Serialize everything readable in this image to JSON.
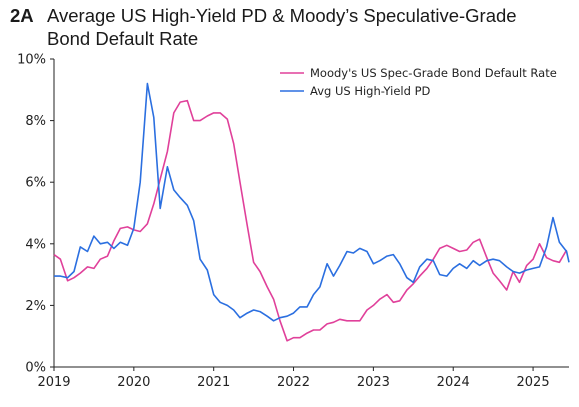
{
  "header": {
    "tag": "2A",
    "title_line1": "Average US High-Yield PD & Moody’s Speculative-Grade",
    "title_line2": "Bond Default Rate"
  },
  "chart_data": {
    "type": "line",
    "title": "Average US High-Yield PD & Moody’s Speculative-Grade Bond Default Rate",
    "xlim": [
      2019.0,
      2025.45
    ],
    "ylim": [
      0,
      10
    ],
    "x_ticks": [
      2019,
      2020,
      2021,
      2022,
      2023,
      2024,
      2025
    ],
    "x_tick_labels": [
      "2019",
      "2020",
      "2021",
      "2022",
      "2023",
      "2024",
      "2025"
    ],
    "y_ticks": [
      0,
      2,
      4,
      6,
      8,
      10
    ],
    "y_tick_labels": [
      "0%",
      "2%",
      "4%",
      "6%",
      "8%",
      "10%"
    ],
    "legend_position": "top-right",
    "grid": false,
    "series": [
      {
        "name": "Moody's US Spec-Grade Bond Default Rate",
        "color": "#e0409a",
        "points": [
          [
            2019.0,
            3.65
          ],
          [
            2019.08,
            3.5
          ],
          [
            2019.17,
            2.8
          ],
          [
            2019.25,
            2.9
          ],
          [
            2019.33,
            3.05
          ],
          [
            2019.42,
            3.25
          ],
          [
            2019.5,
            3.2
          ],
          [
            2019.58,
            3.5
          ],
          [
            2019.67,
            3.6
          ],
          [
            2019.75,
            4.1
          ],
          [
            2019.83,
            4.5
          ],
          [
            2019.92,
            4.55
          ],
          [
            2020.0,
            4.45
          ],
          [
            2020.08,
            4.4
          ],
          [
            2020.17,
            4.65
          ],
          [
            2020.25,
            5.3
          ],
          [
            2020.33,
            6.1
          ],
          [
            2020.42,
            7.0
          ],
          [
            2020.5,
            8.25
          ],
          [
            2020.58,
            8.6
          ],
          [
            2020.67,
            8.65
          ],
          [
            2020.75,
            8.0
          ],
          [
            2020.83,
            8.0
          ],
          [
            2020.92,
            8.15
          ],
          [
            2021.0,
            8.25
          ],
          [
            2021.08,
            8.25
          ],
          [
            2021.17,
            8.05
          ],
          [
            2021.25,
            7.25
          ],
          [
            2021.33,
            6.0
          ],
          [
            2021.42,
            4.6
          ],
          [
            2021.5,
            3.4
          ],
          [
            2021.58,
            3.1
          ],
          [
            2021.67,
            2.6
          ],
          [
            2021.75,
            2.2
          ],
          [
            2021.83,
            1.5
          ],
          [
            2021.92,
            0.85
          ],
          [
            2022.0,
            0.95
          ],
          [
            2022.08,
            0.95
          ],
          [
            2022.17,
            1.1
          ],
          [
            2022.25,
            1.2
          ],
          [
            2022.33,
            1.2
          ],
          [
            2022.42,
            1.4
          ],
          [
            2022.5,
            1.45
          ],
          [
            2022.58,
            1.55
          ],
          [
            2022.67,
            1.5
          ],
          [
            2022.75,
            1.5
          ],
          [
            2022.83,
            1.5
          ],
          [
            2022.92,
            1.85
          ],
          [
            2023.0,
            2.0
          ],
          [
            2023.08,
            2.2
          ],
          [
            2023.17,
            2.35
          ],
          [
            2023.25,
            2.1
          ],
          [
            2023.33,
            2.15
          ],
          [
            2023.42,
            2.5
          ],
          [
            2023.5,
            2.7
          ],
          [
            2023.58,
            2.95
          ],
          [
            2023.67,
            3.2
          ],
          [
            2023.75,
            3.5
          ],
          [
            2023.83,
            3.85
          ],
          [
            2023.92,
            3.95
          ],
          [
            2024.0,
            3.85
          ],
          [
            2024.08,
            3.75
          ],
          [
            2024.17,
            3.8
          ],
          [
            2024.25,
            4.05
          ],
          [
            2024.33,
            4.15
          ],
          [
            2024.42,
            3.55
          ],
          [
            2024.5,
            3.05
          ],
          [
            2024.58,
            2.8
          ],
          [
            2024.67,
            2.5
          ],
          [
            2024.75,
            3.1
          ],
          [
            2024.83,
            2.75
          ],
          [
            2024.92,
            3.3
          ],
          [
            2025.0,
            3.5
          ],
          [
            2025.08,
            4.0
          ],
          [
            2025.17,
            3.55
          ],
          [
            2025.25,
            3.45
          ],
          [
            2025.33,
            3.4
          ],
          [
            2025.42,
            3.8
          ]
        ]
      },
      {
        "name": "Avg US High-Yield PD",
        "color": "#2b6fe0",
        "points": [
          [
            2019.0,
            2.95
          ],
          [
            2019.08,
            2.95
          ],
          [
            2019.17,
            2.9
          ],
          [
            2019.25,
            3.1
          ],
          [
            2019.33,
            3.9
          ],
          [
            2019.42,
            3.75
          ],
          [
            2019.5,
            4.25
          ],
          [
            2019.58,
            4.0
          ],
          [
            2019.67,
            4.05
          ],
          [
            2019.75,
            3.85
          ],
          [
            2019.83,
            4.05
          ],
          [
            2019.92,
            3.95
          ],
          [
            2020.0,
            4.5
          ],
          [
            2020.08,
            6.0
          ],
          [
            2020.17,
            9.2
          ],
          [
            2020.25,
            8.1
          ],
          [
            2020.33,
            5.15
          ],
          [
            2020.42,
            6.5
          ],
          [
            2020.5,
            5.75
          ],
          [
            2020.58,
            5.5
          ],
          [
            2020.67,
            5.25
          ],
          [
            2020.75,
            4.75
          ],
          [
            2020.83,
            3.5
          ],
          [
            2020.92,
            3.15
          ],
          [
            2021.0,
            2.35
          ],
          [
            2021.08,
            2.1
          ],
          [
            2021.17,
            2.0
          ],
          [
            2021.25,
            1.85
          ],
          [
            2021.33,
            1.6
          ],
          [
            2021.42,
            1.75
          ],
          [
            2021.5,
            1.85
          ],
          [
            2021.58,
            1.8
          ],
          [
            2021.67,
            1.65
          ],
          [
            2021.75,
            1.5
          ],
          [
            2021.83,
            1.6
          ],
          [
            2021.92,
            1.65
          ],
          [
            2022.0,
            1.75
          ],
          [
            2022.08,
            1.95
          ],
          [
            2022.17,
            1.95
          ],
          [
            2022.25,
            2.35
          ],
          [
            2022.33,
            2.6
          ],
          [
            2022.42,
            3.35
          ],
          [
            2022.5,
            2.95
          ],
          [
            2022.58,
            3.3
          ],
          [
            2022.67,
            3.75
          ],
          [
            2022.75,
            3.7
          ],
          [
            2022.83,
            3.85
          ],
          [
            2022.92,
            3.75
          ],
          [
            2023.0,
            3.35
          ],
          [
            2023.08,
            3.45
          ],
          [
            2023.17,
            3.6
          ],
          [
            2023.25,
            3.65
          ],
          [
            2023.33,
            3.35
          ],
          [
            2023.42,
            2.9
          ],
          [
            2023.5,
            2.75
          ],
          [
            2023.58,
            3.25
          ],
          [
            2023.67,
            3.5
          ],
          [
            2023.75,
            3.45
          ],
          [
            2023.83,
            3.0
          ],
          [
            2023.92,
            2.95
          ],
          [
            2024.0,
            3.2
          ],
          [
            2024.08,
            3.35
          ],
          [
            2024.17,
            3.2
          ],
          [
            2024.25,
            3.45
          ],
          [
            2024.33,
            3.3
          ],
          [
            2024.42,
            3.45
          ],
          [
            2024.5,
            3.5
          ],
          [
            2024.58,
            3.45
          ],
          [
            2024.67,
            3.25
          ],
          [
            2024.75,
            3.1
          ],
          [
            2024.83,
            3.05
          ],
          [
            2024.92,
            3.15
          ],
          [
            2025.0,
            3.2
          ],
          [
            2025.08,
            3.25
          ],
          [
            2025.17,
            3.9
          ],
          [
            2025.25,
            4.85
          ],
          [
            2025.33,
            4.05
          ],
          [
            2025.42,
            3.75
          ],
          [
            2025.45,
            3.4
          ]
        ]
      }
    ]
  }
}
